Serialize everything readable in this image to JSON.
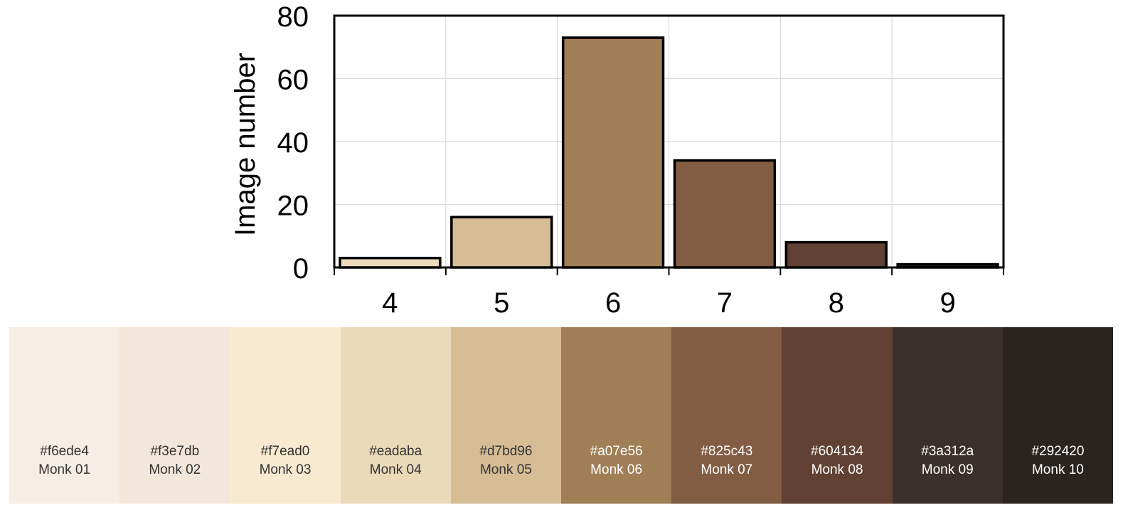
{
  "chart_data": {
    "type": "bar",
    "ylabel": "Image number",
    "ylim": [
      0,
      80
    ],
    "yticks": [
      0,
      20,
      40,
      60,
      80
    ],
    "grid": true,
    "categories": [
      "4",
      "5",
      "6",
      "7",
      "8",
      "9"
    ],
    "values": [
      3,
      16,
      73,
      34,
      8,
      1
    ],
    "bar_colors": [
      "#eadaba",
      "#d7bd96",
      "#a07e56",
      "#825c43",
      "#604134",
      "#292420"
    ]
  },
  "swatches": [
    {
      "hex": "#f6ede4",
      "name": "Monk 01",
      "color": "#f6ede4",
      "text_color": "#333333"
    },
    {
      "hex": "#f3e7db",
      "name": "Monk 02",
      "color": "#f3e7db",
      "text_color": "#333333"
    },
    {
      "hex": "#f7ead0",
      "name": "Monk 03",
      "color": "#f7ead0",
      "text_color": "#333333"
    },
    {
      "hex": "#eadaba",
      "name": "Monk 04",
      "color": "#eadaba",
      "text_color": "#333333"
    },
    {
      "hex": "#d7bd96",
      "name": "Monk 05",
      "color": "#d7bd96",
      "text_color": "#333333"
    },
    {
      "hex": "#a07e56",
      "name": "Monk 06",
      "color": "#a07e56",
      "text_color": "#ffffff"
    },
    {
      "hex": "#825c43",
      "name": "Monk 07",
      "color": "#825c43",
      "text_color": "#ffffff"
    },
    {
      "hex": "#604134",
      "name": "Monk 08",
      "color": "#604134",
      "text_color": "#ffffff"
    },
    {
      "hex": "#3a312a",
      "name": "Monk 09",
      "color": "#3a312a",
      "text_color": "#ffffff"
    },
    {
      "hex": "#292420",
      "name": "Monk 10",
      "color": "#292420",
      "text_color": "#ffffff"
    }
  ]
}
